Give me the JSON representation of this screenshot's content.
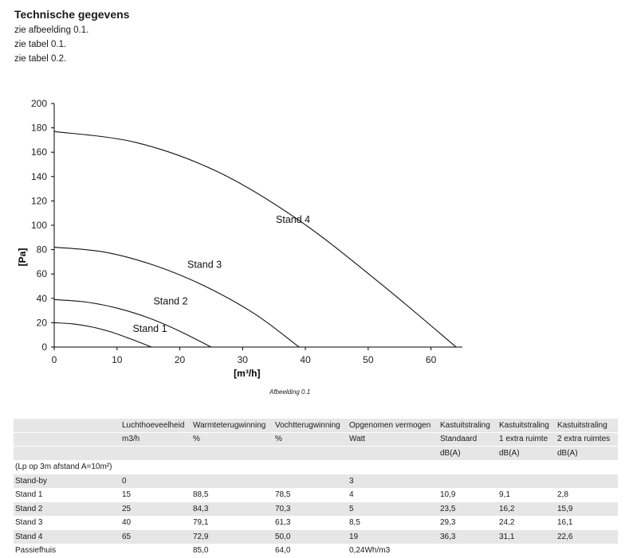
{
  "intro": {
    "title": "Technische gegevens",
    "lines": [
      "zie afbeelding 0.1.",
      "zie tabel 0.1.",
      "zie tabel 0.2."
    ]
  },
  "chart_data": {
    "type": "line",
    "ylabel": "[Pa]",
    "xlabel": "[m³/h]",
    "xlim": [
      0,
      65
    ],
    "ylim": [
      0,
      200
    ],
    "x_ticks": [
      0,
      10,
      20,
      30,
      40,
      50,
      60
    ],
    "y_ticks": [
      0,
      20,
      40,
      60,
      80,
      100,
      120,
      140,
      160,
      180,
      200
    ],
    "grid": false,
    "series": [
      {
        "name": "Stand 1",
        "x": [
          0,
          3,
          6,
          9,
          12,
          15.5
        ],
        "y": [
          20,
          19,
          16.5,
          12.5,
          7,
          0
        ]
      },
      {
        "name": "Stand 2",
        "x": [
          0,
          5,
          10,
          15,
          20,
          25
        ],
        "y": [
          39,
          37,
          32,
          24,
          13,
          0
        ]
      },
      {
        "name": "Stand 3",
        "x": [
          0,
          8,
          16,
          24,
          32,
          39
        ],
        "y": [
          82,
          78,
          67,
          50,
          27,
          0
        ]
      },
      {
        "name": "Stand 4",
        "x": [
          0,
          13,
          26,
          39,
          52,
          64
        ],
        "y": [
          177,
          168,
          144,
          104,
          52,
          0
        ]
      }
    ],
    "caption": "Afbeelding 0.1"
  },
  "table": {
    "header_row1": [
      "",
      "Luchthoeveelheid",
      "Warmteterugwinning",
      "Vochtterugwinning",
      "Opgenomen vermogen",
      "Kastuitstraling",
      "Kastuitstraling",
      "Kastuitstraling"
    ],
    "header_row2": [
      "",
      "m3/h",
      "%",
      "%",
      "Watt",
      "Standaard",
      "1 extra ruimte",
      "2 extra ruimtes"
    ],
    "header_row3": [
      "",
      "",
      "",
      "",
      "",
      "dB(A)",
      "dB(A)",
      "dB(A)"
    ],
    "note": "(Lp op 3m afstand A=10m²)",
    "rows": [
      [
        "Stand-by",
        "0",
        "",
        "",
        "3",
        "",
        "",
        ""
      ],
      [
        "Stand 1",
        "15",
        "88,5",
        "78,5",
        "4",
        "10,9",
        "9,1",
        "2,8"
      ],
      [
        "Stand 2",
        "25",
        "84,3",
        "70,3",
        "5",
        "23,5",
        "16,2",
        "15,9"
      ],
      [
        "Stand 3",
        "40",
        "79,1",
        "61,3",
        "8,5",
        "29,3",
        "24,2",
        "16,1"
      ],
      [
        "Stand 4",
        "65",
        "72,9",
        "50,0",
        "19",
        "36,3",
        "31,1",
        "22,6"
      ],
      [
        "Passiefhuis",
        "",
        "85,0",
        "64,0",
        "0,24Wh/m3",
        "",
        "",
        ""
      ]
    ]
  }
}
